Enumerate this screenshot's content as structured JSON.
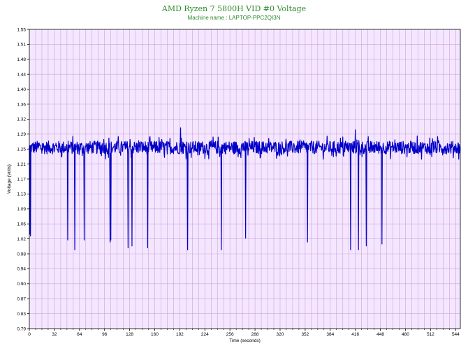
{
  "chart_data": {
    "type": "line",
    "title": "AMD Ryzen 7 5800H VID #0 Voltage",
    "subtitle": "Machine name : LAPTOP-PPC2QI3N",
    "xlabel": "Time (seconds)",
    "ylabel": "Voltage (Volts)",
    "xlim": [
      0,
      550
    ],
    "ylim": [
      0.79,
      1.55
    ],
    "x_ticks": [
      "0",
      "32",
      "64",
      "96",
      "128",
      "160",
      "192",
      "224",
      "256",
      "288",
      "320",
      "352",
      "384",
      "416",
      "448",
      "480",
      "512",
      "544"
    ],
    "y_ticks": [
      "1.55",
      "1.51",
      "1.48",
      "1.44",
      "1.40",
      "1.36",
      "1.32",
      "1.29",
      "1.25",
      "1.21",
      "1.17",
      "1.13",
      "1.09",
      "1.06",
      "1.02",
      "0.98",
      "0.94",
      "0.90",
      "0.87",
      "0.83",
      "0.79"
    ],
    "grid": true,
    "baseline": 1.25,
    "noise": 0.03,
    "dips": [
      {
        "x": 0.5,
        "y": 1.03
      },
      {
        "x": 1.5,
        "y": 1.025
      },
      {
        "x": 49,
        "y": 1.015
      },
      {
        "x": 58,
        "y": 0.99
      },
      {
        "x": 70,
        "y": 1.015
      },
      {
        "x": 103,
        "y": 1.01
      },
      {
        "x": 104,
        "y": 1.015
      },
      {
        "x": 126,
        "y": 0.995
      },
      {
        "x": 131,
        "y": 1.0
      },
      {
        "x": 151,
        "y": 0.995
      },
      {
        "x": 202,
        "y": 0.99
      },
      {
        "x": 245,
        "y": 0.99
      },
      {
        "x": 276,
        "y": 1.02
      },
      {
        "x": 355,
        "y": 1.01
      },
      {
        "x": 410,
        "y": 0.99
      },
      {
        "x": 420,
        "y": 0.99
      },
      {
        "x": 430,
        "y": 1.0
      },
      {
        "x": 450,
        "y": 1.005
      }
    ],
    "spikes": [
      {
        "x": 193,
        "y": 1.3
      },
      {
        "x": 416,
        "y": 1.295
      }
    ],
    "series": [
      {
        "name": "",
        "color": "#0000c8"
      }
    ],
    "colors": {
      "plot_background": "#f5e6ff",
      "grid": "#c9a3d9",
      "title": "#2e8b2e"
    }
  }
}
